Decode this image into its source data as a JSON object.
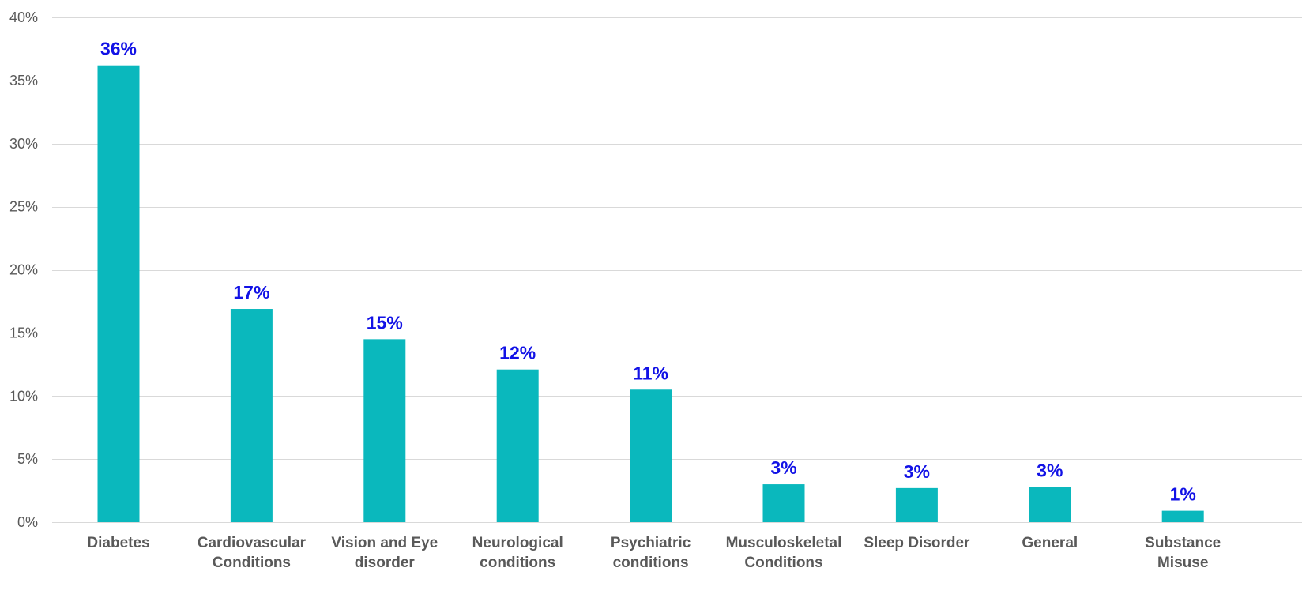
{
  "chart_data": {
    "type": "bar",
    "categories": [
      [
        "Diabetes"
      ],
      [
        "Cardiovascular",
        "Conditions"
      ],
      [
        "Vision and Eye",
        "disorder"
      ],
      [
        "Neurological",
        "conditions"
      ],
      [
        "Psychiatric",
        "conditions"
      ],
      [
        "Musculoskeletal",
        "Conditions"
      ],
      [
        "Sleep Disorder"
      ],
      [
        "General"
      ],
      [
        "Substance",
        "Misuse"
      ]
    ],
    "values": [
      36.2,
      16.9,
      14.5,
      12.1,
      10.5,
      3.0,
      2.7,
      2.8,
      0.9
    ],
    "data_labels": [
      "36%",
      "17%",
      "15%",
      "12%",
      "11%",
      "3%",
      "3%",
      "3%",
      "1%"
    ],
    "ylim": [
      0,
      40
    ],
    "yticks": [
      0,
      5,
      10,
      15,
      20,
      25,
      30,
      35,
      40
    ],
    "ytick_labels": [
      "0%",
      "5%",
      "10%",
      "15%",
      "20%",
      "25%",
      "30%",
      "35%",
      "40%"
    ],
    "grid": true,
    "legend": "none",
    "colors": {
      "bar": "#0ab8bd",
      "data_label": "#1212e6",
      "grid": "#d9d9d9",
      "text": "#595959"
    }
  }
}
